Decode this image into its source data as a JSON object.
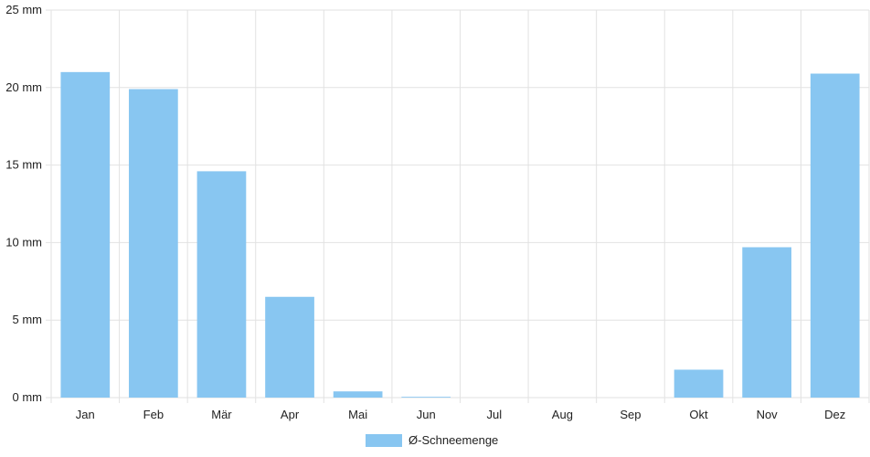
{
  "chart_data": {
    "type": "bar",
    "categories": [
      "Jan",
      "Feb",
      "Mär",
      "Apr",
      "Mai",
      "Jun",
      "Jul",
      "Aug",
      "Sep",
      "Okt",
      "Nov",
      "Dez"
    ],
    "series": [
      {
        "name": "Ø-Schneemenge",
        "values": [
          21.0,
          19.9,
          14.6,
          6.5,
          0.4,
          0.05,
          0,
          0,
          0,
          1.8,
          9.7,
          20.9
        ],
        "color": "#88c6f1"
      }
    ],
    "yticks": [
      "25 mm",
      "20 mm",
      "15 mm",
      "10 mm",
      "5 mm",
      "0 mm"
    ],
    "ylim": [
      0,
      25
    ],
    "grid": true,
    "legend_position": "bottom-center"
  }
}
